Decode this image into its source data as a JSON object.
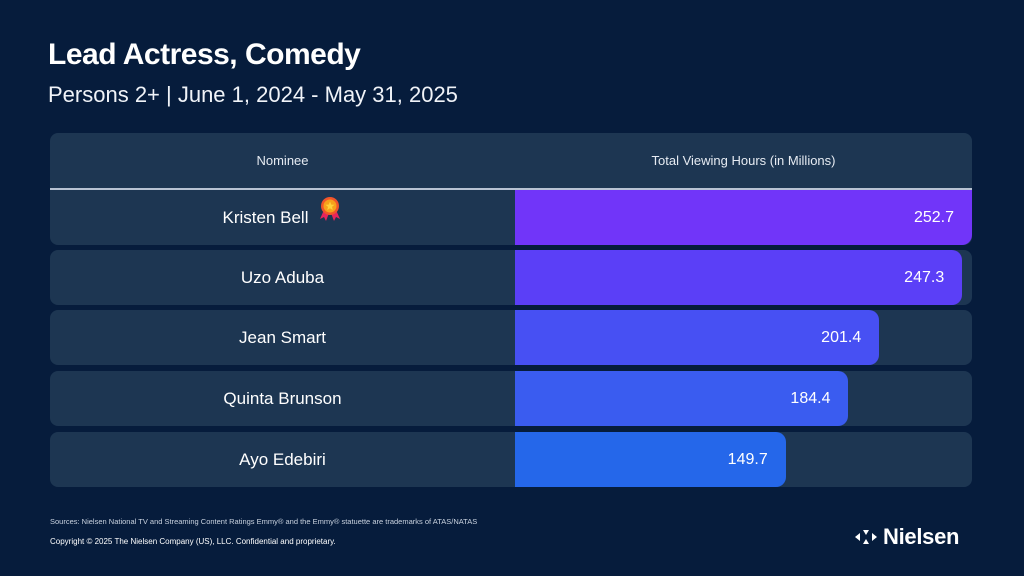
{
  "title": "Lead Actress, Comedy",
  "subtitle": "Persons 2+ | June 1, 2024 - May 31, 2025",
  "chart_data": {
    "type": "bar",
    "orientation": "horizontal",
    "columns": [
      "Nominee",
      "Total Viewing Hours (in Millions)"
    ],
    "categories": [
      "Kristen Bell",
      "Uzo Aduba",
      "Jean Smart",
      "Quinta Brunson",
      "Ayo Edebiri"
    ],
    "values": [
      252.7,
      247.3,
      201.4,
      184.4,
      149.7
    ],
    "labels": [
      "252.7",
      "247.3",
      "201.4",
      "184.4",
      "149.7"
    ],
    "winner": "Kristen Bell",
    "winner_icon": "award-ribbon-icon",
    "bar_colors": [
      "#7135f9",
      "#5b3ff7",
      "#4750f3",
      "#3a5cf0",
      "#2567ea"
    ],
    "xlim": [
      0,
      252.7
    ]
  },
  "footer": {
    "sources": "Sources: Nielsen National TV and Streaming Content Ratings Emmy® and the Emmy® statuette are trademarks of ATAS/NATAS",
    "copyright": "Copyright © 2025 The Nielsen Company (US), LLC. Confidential and proprietary."
  },
  "logo": {
    "text": "Nielsen"
  },
  "colors": {
    "background": "#061c3c",
    "row": "#1d3652"
  }
}
